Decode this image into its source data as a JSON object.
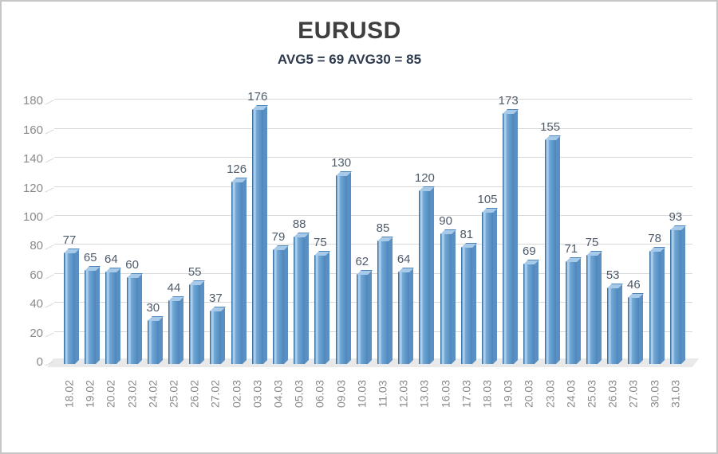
{
  "page": {
    "background": "#ffffff",
    "border_color": "#c6c6c6"
  },
  "chart_data": {
    "type": "bar",
    "style": "3d-column",
    "title": "EURUSD",
    "subtitle": "AVG5 = 69 AVG30 = 85",
    "categories": [
      "18.02",
      "19.02",
      "20.02",
      "23.02",
      "24.02",
      "25.02",
      "26.02",
      "27.02",
      "02.03",
      "03.03",
      "04.03",
      "05.03",
      "06.03",
      "09.03",
      "10.03",
      "11.03",
      "12.03",
      "13.03",
      "16.03",
      "17.03",
      "18.03",
      "19.03",
      "20.03",
      "23.03",
      "24.03",
      "25.03",
      "26.03",
      "27.03",
      "30.03",
      "31.03"
    ],
    "values": [
      77,
      65,
      64,
      60,
      30,
      44,
      55,
      37,
      126,
      176,
      79,
      88,
      75,
      130,
      62,
      85,
      64,
      120,
      90,
      81,
      105,
      173,
      69,
      155,
      71,
      75,
      53,
      46,
      78,
      93
    ],
    "yticks": [
      0,
      20,
      40,
      60,
      80,
      100,
      120,
      140,
      160,
      180
    ],
    "ylim": [
      0,
      180
    ],
    "xlabel": "",
    "ylabel": "",
    "grid": true,
    "legend_position": "none",
    "colors": {
      "bar_front": "#6fa7d7",
      "bar_front_light": "#a9cdea",
      "bar_front_dark": "#4f86ba",
      "bar_side": "#5a8fc3",
      "bar_top": "#a6cae8",
      "bar_outline": "#3f74a3",
      "gridline": "#d9d9d9",
      "floor": "#e9e9e9",
      "title_color": "#3f3f3f",
      "subtitle_color": "#2e3b4e",
      "tick_label_color": "#8a8a8a",
      "value_label_color": "#4d5a6a"
    }
  }
}
